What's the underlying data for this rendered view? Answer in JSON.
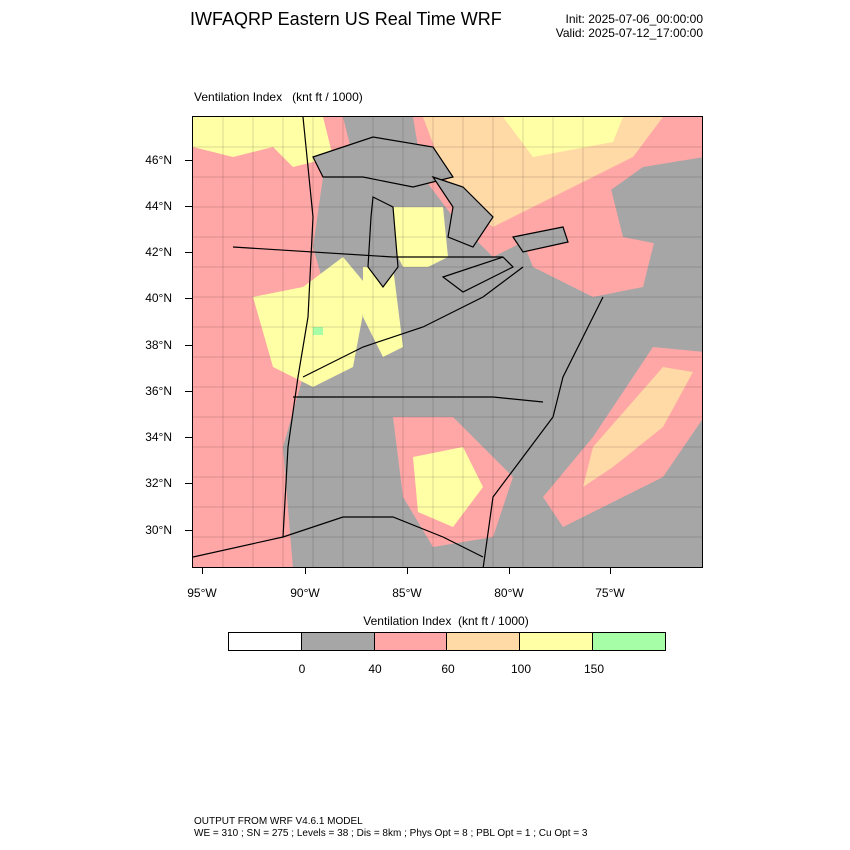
{
  "header": {
    "title": "IWFAQRP Eastern US Real Time WRF",
    "init": "Init: 2025-07-06_00:00:00",
    "valid": "Valid: 2025-07-12_17:00:00"
  },
  "field_label": "Ventilation Index   (knt ft / 1000)",
  "map": {
    "lat_ticks": [
      "46°N",
      "44°N",
      "42°N",
      "40°N",
      "38°N",
      "36°N",
      "34°N",
      "32°N",
      "30°N"
    ],
    "lon_ticks": [
      "95°W",
      "90°W",
      "85°W",
      "80°W",
      "75°W"
    ],
    "colors": {
      "ocean": "#a6a6a6",
      "land_low": "#a6a6a6",
      "pink": "#ffa6a6",
      "orange": "#ffd9a6",
      "yellow": "#ffffa6",
      "green": "#a6ffa6",
      "lake": "#8c8c8c"
    }
  },
  "colorbar": {
    "title": "Ventilation Index  (knt ft / 1000)",
    "colors": [
      "#ffffff",
      "#a6a6a6",
      "#ffa6a6",
      "#ffd9a6",
      "#ffffa6",
      "#a6ffa6"
    ],
    "labels": [
      "0",
      "40",
      "60",
      "100",
      "150"
    ]
  },
  "footer": {
    "line1": "OUTPUT FROM WRF V4.6.1 MODEL",
    "line2": "WE = 310 ; SN = 275 ; Levels = 38 ; Dis = 8km ; Phys Opt = 8 ; PBL Opt = 1 ; Cu Opt = 3"
  }
}
